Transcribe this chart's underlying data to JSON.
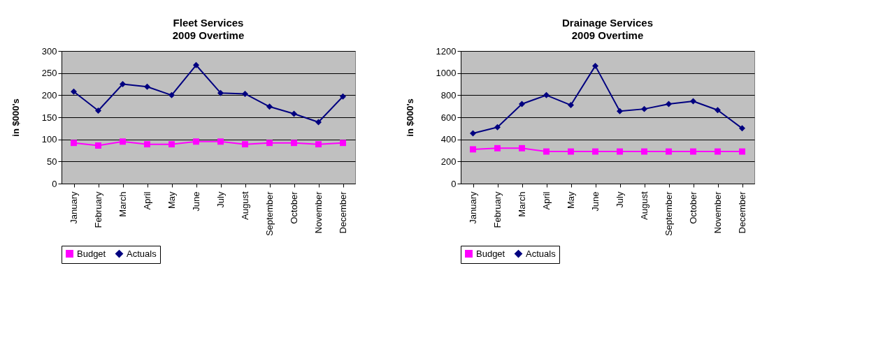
{
  "chart_data": [
    {
      "type": "line",
      "title": "Fleet Services",
      "subtitle": "2009 Overtime",
      "ylabel": "in $000's",
      "categories": [
        "January",
        "February",
        "March",
        "April",
        "May",
        "June",
        "July",
        "August",
        "September",
        "October",
        "November",
        "December"
      ],
      "series": [
        {
          "name": "Budget",
          "color": "#ff00ff",
          "marker": "square",
          "values": [
            92,
            86,
            95,
            89,
            89,
            95,
            95,
            89,
            92,
            92,
            89,
            92
          ]
        },
        {
          "name": "Actuals",
          "color": "#000080",
          "marker": "diamond",
          "values": [
            208,
            165,
            225,
            219,
            200,
            268,
            205,
            203,
            174,
            158,
            139,
            197
          ]
        }
      ],
      "ylim": [
        0,
        300
      ],
      "yticks": [
        0,
        50,
        100,
        150,
        200,
        250,
        300
      ],
      "grid": "y",
      "legend": "bottom"
    },
    {
      "type": "line",
      "title": "Drainage Services",
      "subtitle": "2009 Overtime",
      "ylabel": "in $000's",
      "categories": [
        "January",
        "February",
        "March",
        "April",
        "May",
        "June",
        "July",
        "August",
        "September",
        "October",
        "November",
        "December"
      ],
      "series": [
        {
          "name": "Budget",
          "color": "#ff00ff",
          "marker": "square",
          "values": [
            310,
            320,
            320,
            290,
            290,
            290,
            290,
            290,
            290,
            290,
            290,
            290
          ]
        },
        {
          "name": "Actuals",
          "color": "#000080",
          "marker": "diamond",
          "values": [
            455,
            510,
            720,
            800,
            710,
            1065,
            655,
            675,
            720,
            745,
            665,
            500
          ]
        }
      ],
      "ylim": [
        0,
        1200
      ],
      "yticks": [
        0,
        200,
        400,
        600,
        800,
        1000,
        1200
      ],
      "grid": "y",
      "legend": "bottom"
    }
  ]
}
